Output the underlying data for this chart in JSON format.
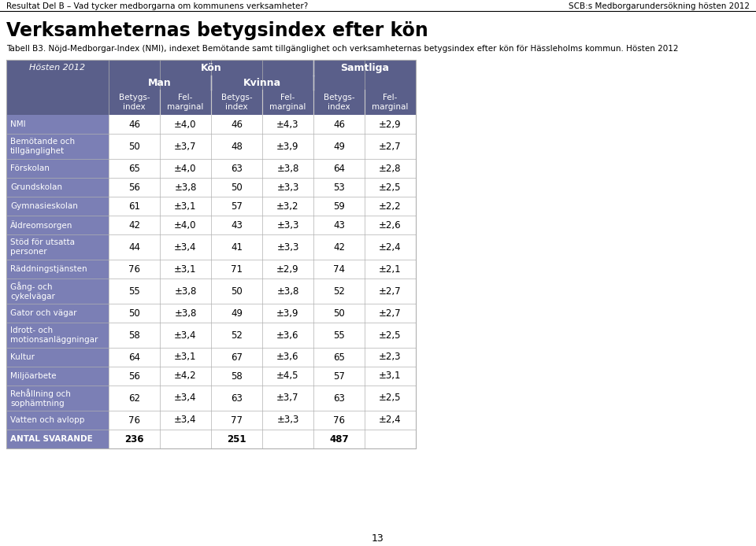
{
  "page_header_left": "Resultat Del B – Vad tycker medborgarna om kommunens verksamheter?",
  "page_header_right": "SCB:s Medborgarundersökning hösten 2012",
  "title": "Verksamheternas betygsindex efter kön",
  "subtitle": "Tabell B3. Nöjd-Medborgar-Index (NMI), indexet Bemötande samt tillgänglighet och verksamheternas betygsindex efter kön för Hässleholms kommun. Hösten 2012",
  "page_number": "13",
  "header_bg": "#5a5f8a",
  "row_bg_dark": "#7b7fb5",
  "header_text_color": "#ffffff",
  "body_text_color": "#000000",
  "col_header_labels": [
    "Betygs-\nindex",
    "Fel-\nmarginal",
    "Betygs-\nindex",
    "Fel-\nmarginal",
    "Betygs-\nindex",
    "Fel-\nmarginal"
  ],
  "rows": [
    {
      "label": "NMI",
      "data": [
        "46",
        "±4,0",
        "46",
        "±4,3",
        "46",
        "±2,9"
      ],
      "bold": false
    },
    {
      "label": "Bemötande och\ntillgänglighet",
      "data": [
        "50",
        "±3,7",
        "48",
        "±3,9",
        "49",
        "±2,7"
      ],
      "bold": false
    },
    {
      "label": "Förskolan",
      "data": [
        "65",
        "±4,0",
        "63",
        "±3,8",
        "64",
        "±2,8"
      ],
      "bold": false
    },
    {
      "label": "Grundskolan",
      "data": [
        "56",
        "±3,8",
        "50",
        "±3,3",
        "53",
        "±2,5"
      ],
      "bold": false
    },
    {
      "label": "Gymnasieskolan",
      "data": [
        "61",
        "±3,1",
        "57",
        "±3,2",
        "59",
        "±2,2"
      ],
      "bold": false
    },
    {
      "label": "Äldreomsorgen",
      "data": [
        "42",
        "±4,0",
        "43",
        "±3,3",
        "43",
        "±2,6"
      ],
      "bold": false
    },
    {
      "label": "Stöd för utsatta\npersoner",
      "data": [
        "44",
        "±3,4",
        "41",
        "±3,3",
        "42",
        "±2,4"
      ],
      "bold": false
    },
    {
      "label": "Räddningstjänsten",
      "data": [
        "76",
        "±3,1",
        "71",
        "±2,9",
        "74",
        "±2,1"
      ],
      "bold": false
    },
    {
      "label": "Gång- och\ncykelvägar",
      "data": [
        "55",
        "±3,8",
        "50",
        "±3,8",
        "52",
        "±2,7"
      ],
      "bold": false
    },
    {
      "label": "Gator och vägar",
      "data": [
        "50",
        "±3,8",
        "49",
        "±3,9",
        "50",
        "±2,7"
      ],
      "bold": false
    },
    {
      "label": "Idrott- och\nmotionsanläggningar",
      "data": [
        "58",
        "±3,4",
        "52",
        "±3,6",
        "55",
        "±2,5"
      ],
      "bold": false
    },
    {
      "label": "Kultur",
      "data": [
        "64",
        "±3,1",
        "67",
        "±3,6",
        "65",
        "±2,3"
      ],
      "bold": false
    },
    {
      "label": "Miljöarbete",
      "data": [
        "56",
        "±4,2",
        "58",
        "±4,5",
        "57",
        "±3,1"
      ],
      "bold": false
    },
    {
      "label": "Rehållning och\nsophämtning",
      "data": [
        "62",
        "±3,4",
        "63",
        "±3,7",
        "63",
        "±2,5"
      ],
      "bold": false
    },
    {
      "label": "Vatten och avlopp",
      "data": [
        "76",
        "±3,4",
        "77",
        "±3,3",
        "76",
        "±2,4"
      ],
      "bold": false
    },
    {
      "label": "ANTAL SVARANDE",
      "data": [
        "236",
        "",
        "251",
        "",
        "487",
        ""
      ],
      "bold": true
    }
  ]
}
